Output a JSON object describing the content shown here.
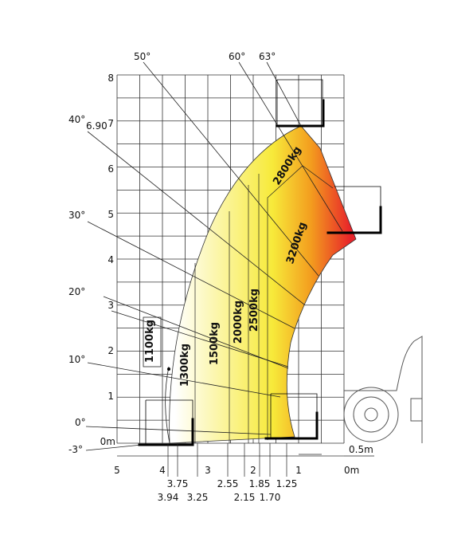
{
  "diagram": {
    "y_axis_ticks": [
      "8",
      "7",
      "6",
      "5",
      "4",
      "3",
      "2",
      "1",
      "0m"
    ],
    "x_axis_ticks": [
      "5",
      "4",
      "3",
      "2",
      "1",
      "0m"
    ],
    "sub_ticks_upper": [
      "3.75",
      "2.55",
      "1.85",
      "1.25"
    ],
    "sub_ticks_lower": [
      "3.94",
      "3.25",
      "2.15",
      "1.70"
    ],
    "angles": {
      "a50": "50°",
      "a60": "60°",
      "a63": "63°",
      "a40": "40°",
      "a30": "30°",
      "a20": "20°",
      "a10": "10°",
      "a0": "0°",
      "am3": "-3°"
    },
    "max_height": "6.90",
    "zones": [
      {
        "label": "1100kg"
      },
      {
        "label": "1300kg"
      },
      {
        "label": "1500kg"
      },
      {
        "label": "2000kg"
      },
      {
        "label": "2500kg"
      },
      {
        "label": "2800kg"
      },
      {
        "label": "3200kg"
      }
    ],
    "offset_label": "0.5m",
    "colors": {
      "low": "#ffffff",
      "mid": "#f7ea3a",
      "high": "#f39c1e",
      "top": "#e8242a"
    }
  }
}
